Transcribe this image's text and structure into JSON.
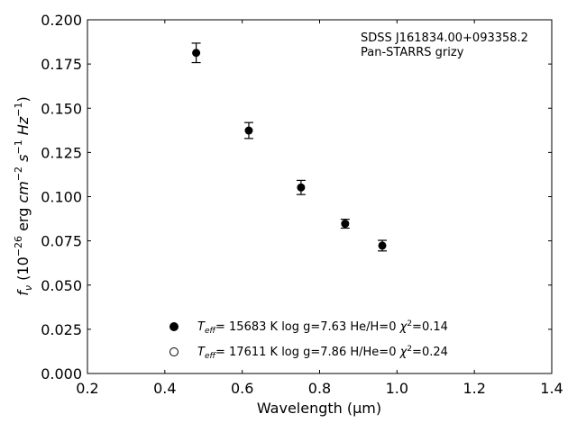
{
  "chart_data": {
    "type": "scatter",
    "xlabel": "Wavelength (μm)",
    "ylabel": "f_ν (10^-26 erg cm^-2 s^-1 Hz^-1)",
    "xlim": [
      0.2,
      1.4
    ],
    "ylim": [
      0.0,
      0.2
    ],
    "x_ticks": [
      "0.2",
      "0.4",
      "0.6",
      "0.8",
      "1.0",
      "1.2",
      "1.4"
    ],
    "y_ticks": [
      "0.000",
      "0.025",
      "0.050",
      "0.075",
      "0.100",
      "0.125",
      "0.150",
      "0.175",
      "0.200"
    ],
    "grid": false,
    "annotation": [
      "SDSS J161834.00+093358.2",
      "Pan-STARRS grizy"
    ],
    "series": [
      {
        "marker": "errorbar-filled",
        "x": [
          0.481,
          0.617,
          0.752,
          0.866,
          0.962
        ],
        "y": [
          0.1813,
          0.1374,
          0.1052,
          0.0847,
          0.0723
        ],
        "yerr": [
          0.0055,
          0.0045,
          0.004,
          0.0025,
          0.003
        ]
      }
    ],
    "legend": {
      "placement": "lower-center",
      "entries": [
        {
          "marker": "filled-circle",
          "teff": "= 15683 K",
          "logg": "log g=7.63",
          "comp": "He/H=0",
          "chi": "=0.14"
        },
        {
          "marker": "open-circle",
          "teff": "= 17611 K",
          "logg": "log g=7.86",
          "comp": "H/He=0",
          "chi": "=0.24"
        }
      ]
    }
  }
}
